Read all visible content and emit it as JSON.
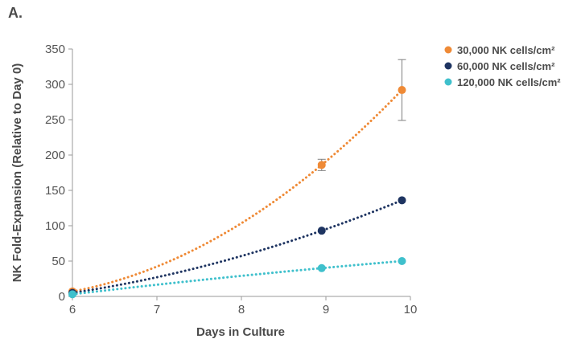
{
  "panel_label": "A.",
  "colors": {
    "axis": "#9a9a9a",
    "text": "#4a4a4a",
    "errorbar": "#7f7f7f"
  },
  "chart_data": {
    "type": "scatter",
    "title": "",
    "xlabel": "Days in Culture",
    "ylabel": "NK Fold-Expansion (Relative to Day 0)",
    "xlim": [
      6,
      10
    ],
    "ylim": [
      0,
      350
    ],
    "xticks": [
      6,
      7,
      8,
      9,
      10
    ],
    "yticks": [
      0,
      50,
      100,
      150,
      200,
      250,
      300,
      350
    ],
    "grid": false,
    "legend_position": "top-right",
    "trendline": "dotted polynomial",
    "series": [
      {
        "name": "30,000 NK cells/cm²",
        "color": "#ef8a36",
        "x": [
          6,
          8.95,
          9.9
        ],
        "y": [
          7,
          186,
          292
        ],
        "error": [
          0,
          8,
          43
        ]
      },
      {
        "name": "60,000 NK cells/cm²",
        "color": "#1e3461",
        "x": [
          6,
          8.95,
          9.9
        ],
        "y": [
          5,
          93,
          136
        ],
        "error": [
          0,
          0,
          0
        ]
      },
      {
        "name": "120,000 NK cells/cm²",
        "color": "#3fc0cc",
        "x": [
          6,
          8.95,
          9.9
        ],
        "y": [
          3,
          40,
          50
        ],
        "error": [
          0,
          0,
          0
        ]
      }
    ]
  }
}
